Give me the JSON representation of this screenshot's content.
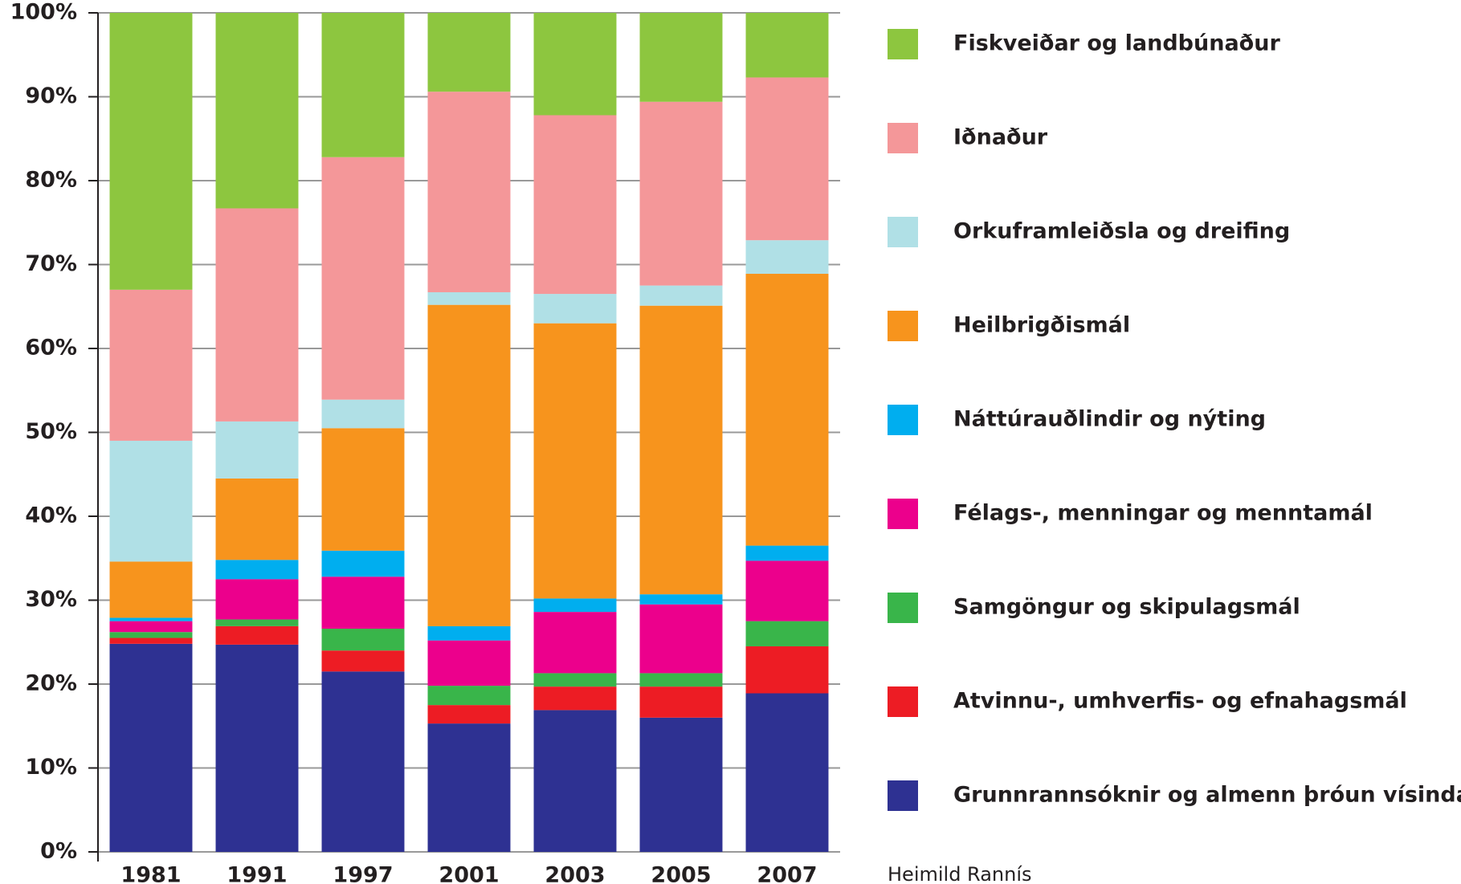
{
  "chart_data": {
    "type": "stacked_bar",
    "categories": [
      "1981",
      "1991",
      "1997",
      "2001",
      "2003",
      "2005",
      "2007"
    ],
    "series": [
      {
        "name": "Grunnrannsóknir og almenn þróun vísinda",
        "color": "#2e3192",
        "values": [
          24.8,
          24.7,
          21.5,
          15.3,
          16.9,
          16.0,
          18.9
        ]
      },
      {
        "name": "Atvinnu-, umhverfis- og efnahagsmál",
        "color": "#ed1c24",
        "values": [
          0.7,
          2.2,
          2.5,
          2.2,
          2.8,
          3.7,
          5.6
        ]
      },
      {
        "name": "Samgöngur og skipulagsmál",
        "color": "#39b54a",
        "values": [
          0.7,
          0.8,
          2.6,
          2.3,
          1.6,
          1.6,
          3.0
        ]
      },
      {
        "name": "Félags-, menningar og menntamál",
        "color": "#ec008c",
        "values": [
          1.3,
          4.8,
          6.2,
          5.4,
          7.3,
          8.2,
          7.2
        ]
      },
      {
        "name": "Náttúrauðlindir og nýting",
        "color": "#00aeef",
        "values": [
          0.4,
          2.3,
          3.1,
          1.7,
          1.6,
          1.2,
          1.8
        ]
      },
      {
        "name": "Heilbrigðismál",
        "color": "#f7941d",
        "values": [
          6.7,
          9.7,
          14.6,
          38.3,
          32.8,
          34.4,
          32.4
        ]
      },
      {
        "name": "Orkuframleiðsla og dreifing",
        "color": "#b0e0e6",
        "values": [
          14.4,
          6.8,
          3.4,
          1.5,
          3.5,
          2.4,
          4.0
        ]
      },
      {
        "name": "Iðnaður",
        "color": "#f49799",
        "values": [
          18.0,
          25.4,
          28.9,
          23.9,
          21.3,
          21.9,
          19.4
        ]
      },
      {
        "name": "Fiskveiðar og landbúnaður",
        "color": "#8dc63f",
        "values": [
          33.0,
          23.3,
          17.2,
          9.4,
          12.2,
          10.6,
          7.7
        ]
      }
    ],
    "ylim": [
      0,
      100
    ],
    "yticks": [
      {
        "value": 0,
        "label": "0%"
      },
      {
        "value": 10,
        "label": "10%"
      },
      {
        "value": 20,
        "label": "20%"
      },
      {
        "value": 30,
        "label": "30%"
      },
      {
        "value": 40,
        "label": "40%"
      },
      {
        "value": 50,
        "label": "50%"
      },
      {
        "value": 60,
        "label": "60%"
      },
      {
        "value": 70,
        "label": "70%"
      },
      {
        "value": 80,
        "label": "80%"
      },
      {
        "value": 90,
        "label": "90%"
      },
      {
        "value": 100,
        "label": "100%"
      }
    ],
    "grid": true,
    "legend": "right",
    "source": "Heimild Rannís"
  }
}
